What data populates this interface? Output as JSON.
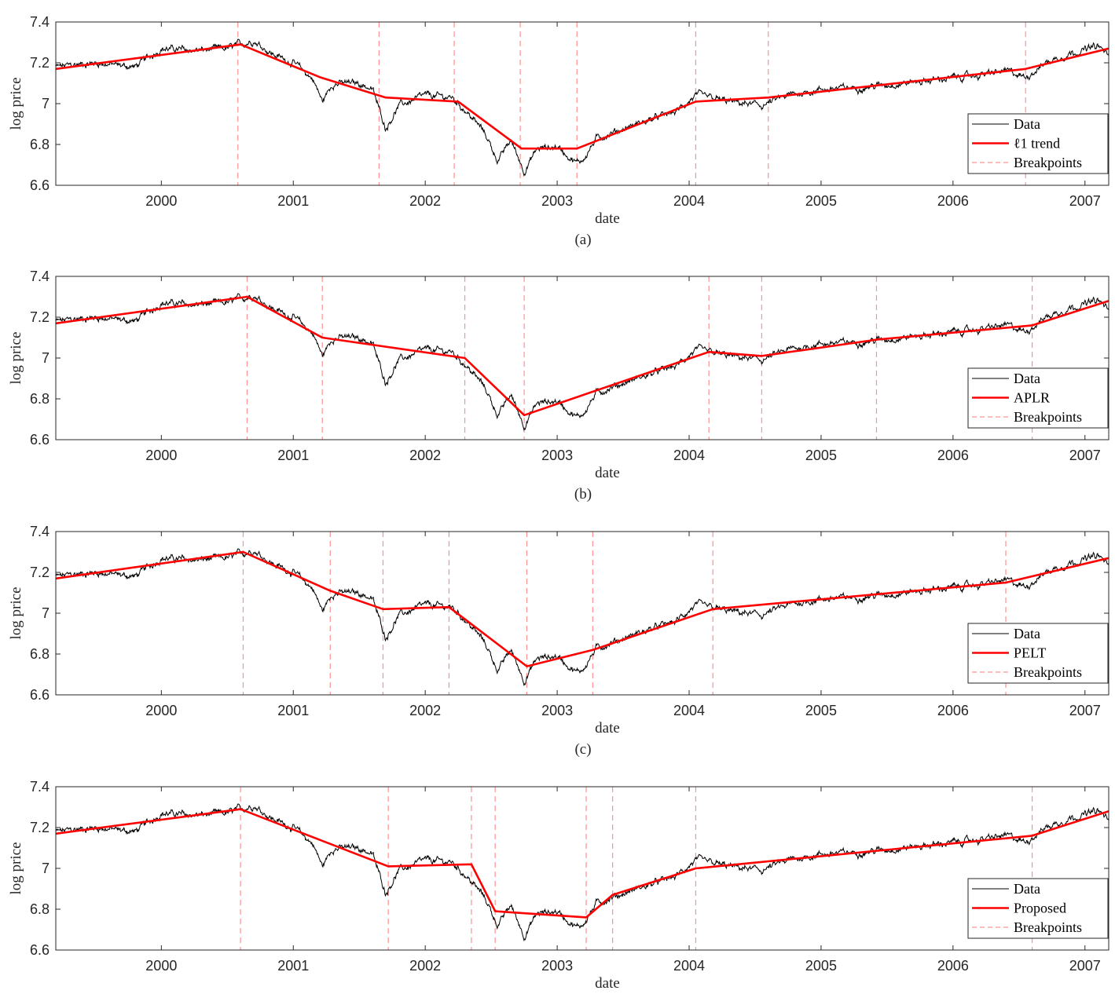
{
  "chart_data": [
    {
      "type": "line",
      "caption": "(a)",
      "xlabel": "date",
      "ylabel": "log price",
      "xlim": [
        1999.2,
        2007.18
      ],
      "ylim": [
        6.6,
        7.4
      ],
      "xticks": [
        2000,
        2001,
        2002,
        2003,
        2004,
        2005,
        2006,
        2007
      ],
      "yticks": [
        6.6,
        6.8,
        7,
        7.2,
        7.4
      ],
      "ytick_labels": [
        "6.6",
        "6.8",
        "7",
        "7.2",
        "7.4"
      ],
      "legend_position": "bottom-right",
      "series": [
        {
          "name": "Data",
          "role": "data",
          "color": "#000000"
        },
        {
          "name": "ℓ1 trend",
          "role": "fit",
          "color": "#ff0000",
          "x": [
            1999.2,
            2000.6,
            2001.2,
            2001.7,
            2002.25,
            2002.73,
            2003.15,
            2004.05,
            2004.6,
            2006.55,
            2007.18
          ],
          "y": [
            7.17,
            7.29,
            7.13,
            7.03,
            7.01,
            6.78,
            6.78,
            7.01,
            7.03,
            7.17,
            7.27
          ]
        },
        {
          "name": "Breakpoints",
          "role": "breakpoints",
          "color": "#ff9090",
          "x": [
            2000.58,
            2001.65,
            2002.22,
            2002.72,
            2003.15,
            2004.05,
            2004.6,
            2006.55
          ]
        }
      ]
    },
    {
      "type": "line",
      "caption": "(b)",
      "xlabel": "date",
      "ylabel": "log price",
      "xlim": [
        1999.2,
        2007.18
      ],
      "ylim": [
        6.6,
        7.4
      ],
      "xticks": [
        2000,
        2001,
        2002,
        2003,
        2004,
        2005,
        2006,
        2007
      ],
      "yticks": [
        6.6,
        6.8,
        7,
        7.2,
        7.4
      ],
      "ytick_labels": [
        "6.6",
        "6.8",
        "7",
        "7.2",
        "7.4"
      ],
      "legend_position": "bottom-right",
      "series": [
        {
          "name": "Data",
          "role": "data",
          "color": "#000000"
        },
        {
          "name": "APLR",
          "role": "fit",
          "color": "#ff0000",
          "x": [
            1999.2,
            2000.65,
            2001.22,
            2002.3,
            2002.75,
            2004.15,
            2004.55,
            2005.42,
            2006.6,
            2007.18
          ],
          "y": [
            7.17,
            7.3,
            7.1,
            7.0,
            6.72,
            7.03,
            7.01,
            7.09,
            7.16,
            7.28
          ]
        },
        {
          "name": "Breakpoints",
          "role": "breakpoints",
          "color": "#ff9090",
          "x": [
            2000.65,
            2001.22,
            2002.3,
            2002.75,
            2004.15,
            2004.55,
            2005.42,
            2006.6
          ]
        }
      ]
    },
    {
      "type": "line",
      "caption": "(c)",
      "xlabel": "date",
      "ylabel": "log price",
      "xlim": [
        1999.2,
        2007.18
      ],
      "ylim": [
        6.6,
        7.4
      ],
      "xticks": [
        2000,
        2001,
        2002,
        2003,
        2004,
        2005,
        2006,
        2007
      ],
      "yticks": [
        6.6,
        6.8,
        7,
        7.2,
        7.4
      ],
      "ytick_labels": [
        "6.6",
        "6.8",
        "7",
        "7.2",
        "7.4"
      ],
      "legend_position": "bottom-right",
      "series": [
        {
          "name": "Data",
          "role": "data",
          "color": "#000000"
        },
        {
          "name": "PELT",
          "role": "fit",
          "color": "#ff0000",
          "x": [
            1999.2,
            2000.62,
            2001.28,
            2001.68,
            2002.18,
            2002.77,
            2003.27,
            2004.18,
            2006.4,
            2007.18
          ],
          "y": [
            7.17,
            7.3,
            7.11,
            7.02,
            7.03,
            6.74,
            6.82,
            7.02,
            7.15,
            7.27
          ]
        },
        {
          "name": "Breakpoints",
          "role": "breakpoints",
          "color": "#ff9090",
          "x": [
            2000.62,
            2001.28,
            2001.68,
            2002.18,
            2002.77,
            2003.27,
            2004.18,
            2006.4
          ]
        }
      ]
    },
    {
      "type": "line",
      "caption": "",
      "xlabel": "date",
      "ylabel": "log price",
      "xlim": [
        1999.2,
        2007.18
      ],
      "ylim": [
        6.6,
        7.4
      ],
      "xticks": [
        2000,
        2001,
        2002,
        2003,
        2004,
        2005,
        2006,
        2007
      ],
      "yticks": [
        6.6,
        6.8,
        7,
        7.2,
        7.4
      ],
      "ytick_labels": [
        "6.6",
        "6.8",
        "7",
        "7.2",
        "7.4"
      ],
      "legend_position": "bottom-right",
      "series": [
        {
          "name": "Data",
          "role": "data",
          "color": "#000000"
        },
        {
          "name": "Proposed",
          "role": "fit",
          "color": "#ff0000",
          "x": [
            1999.2,
            2000.6,
            2001.72,
            2002.35,
            2002.53,
            2003.22,
            2003.42,
            2004.05,
            2006.6,
            2007.18
          ],
          "y": [
            7.17,
            7.29,
            7.01,
            7.02,
            6.79,
            6.76,
            6.87,
            7.0,
            7.16,
            7.28
          ]
        },
        {
          "name": "Breakpoints",
          "role": "breakpoints",
          "color": "#ff9090",
          "x": [
            2000.6,
            2001.72,
            2002.35,
            2002.53,
            2003.22,
            2003.42,
            2004.05,
            2006.6
          ]
        }
      ]
    }
  ],
  "data_series": {
    "x_start": 1999.2,
    "x_end": 2007.18,
    "anchors_x": [
      1999.2,
      1999.5,
      1999.8,
      2000.0,
      2000.25,
      2000.5,
      2000.7,
      2000.85,
      2001.0,
      2001.15,
      2001.22,
      2001.3,
      2001.5,
      2001.6,
      2001.7,
      2001.8,
      2002.0,
      2002.2,
      2002.3,
      2002.45,
      2002.55,
      2002.65,
      2002.75,
      2002.85,
      2003.0,
      2003.15,
      2003.2,
      2003.3,
      2003.6,
      2003.9,
      2004.05,
      2004.3,
      2004.55,
      2004.75,
      2005.0,
      2005.3,
      2005.6,
      2005.9,
      2006.2,
      2006.4,
      2006.55,
      2006.7,
      2006.9,
      2007.1,
      2007.18
    ],
    "anchors_y": [
      7.18,
      7.2,
      7.18,
      7.27,
      7.26,
      7.27,
      7.31,
      7.24,
      7.2,
      7.12,
      7.01,
      7.1,
      7.1,
      7.07,
      6.88,
      6.99,
      7.04,
      7.03,
      6.97,
      6.86,
      6.72,
      6.82,
      6.67,
      6.78,
      6.79,
      6.71,
      6.73,
      6.83,
      6.9,
      6.96,
      7.04,
      7.01,
      6.99,
      7.04,
      7.07,
      7.08,
      7.1,
      7.12,
      7.14,
      7.16,
      7.13,
      7.2,
      7.25,
      7.28,
      7.24
    ]
  }
}
